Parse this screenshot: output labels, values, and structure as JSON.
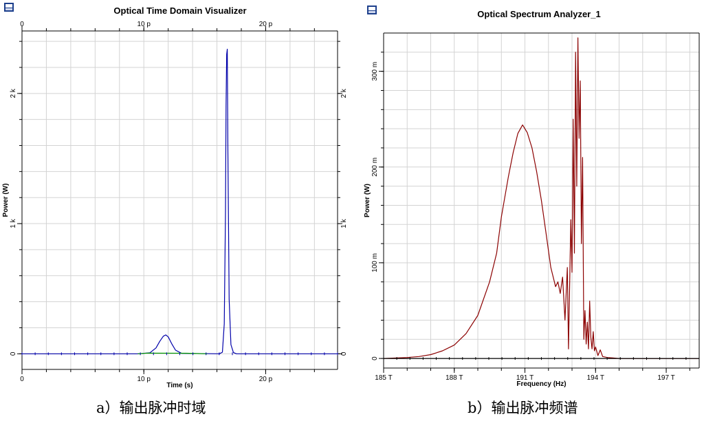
{
  "colors": {
    "time_main": "#0000aa",
    "time_secondary": "#009900",
    "spectrum_main": "#8b0000",
    "spectrum_noise": "#000000",
    "grid": "#d3d3d3",
    "icon": "#1c3f8c"
  },
  "icons": [
    "monitor-icon",
    "monitor-icon"
  ],
  "captions": {
    "left": "a）输出脉冲时域",
    "right": "b）输出脉冲频谱"
  },
  "chart_data": [
    {
      "type": "line",
      "title": "Optical Time Domain Visualizer",
      "xlabel": "Time (s)",
      "ylabel": "Power (W)",
      "x_ticks": [
        "0",
        "10 p",
        "20 p"
      ],
      "top_ticks": [
        "0",
        "10 p",
        "20 p"
      ],
      "y_ticks": [
        "0",
        "1 k",
        "2 k"
      ],
      "right_ticks": [
        "0",
        "1 k",
        "2 k"
      ],
      "xlim": [
        0,
        25.9
      ],
      "ylim": [
        -120,
        2480
      ],
      "grid": true,
      "series": [
        {
          "color": "time_main",
          "x": [
            0,
            9.5,
            10.5,
            11.0,
            11.3,
            11.6,
            11.8,
            12.0,
            12.3,
            12.6,
            13.1,
            16.2,
            16.45,
            16.6,
            16.7,
            16.75,
            16.8,
            16.85,
            16.9,
            17.0,
            17.15,
            17.35,
            17.6,
            25.9
          ],
          "y": [
            0,
            0,
            8,
            45,
            95,
            135,
            145,
            130,
            75,
            28,
            3,
            0,
            12,
            230,
            1100,
            1900,
            2300,
            2340,
            1550,
            420,
            70,
            10,
            0,
            0
          ]
        },
        {
          "color": "time_secondary",
          "x": [
            9.5,
            10.3,
            13.5,
            15.2
          ],
          "y": [
            0,
            5,
            4,
            0
          ]
        }
      ]
    },
    {
      "type": "line",
      "title": "Optical Spectrum Analyzer_1",
      "xlabel": "Frequency (Hz)",
      "ylabel": "Power (W)",
      "x_ticks": [
        "185 T",
        "188 T",
        "191 T",
        "194 T",
        "197 T"
      ],
      "y_ticks": [
        "0",
        "100 m",
        "200 m",
        "300 m"
      ],
      "xlim": [
        185,
        198.4
      ],
      "ylim": [
        -10,
        340
      ],
      "grid": true,
      "series": [
        {
          "color": "spectrum_main",
          "x": [
            185.0,
            186.0,
            186.5,
            187.0,
            187.5,
            188.0,
            188.5,
            189.0,
            189.5,
            189.8,
            190.0,
            190.3,
            190.5,
            190.7,
            190.9,
            191.1,
            191.3,
            191.5,
            191.7,
            191.9,
            192.1,
            192.3,
            192.4,
            192.5,
            192.6,
            192.7,
            192.8,
            192.85,
            192.95,
            193.0,
            193.05,
            193.1,
            193.15,
            193.2,
            193.25,
            193.3,
            193.35,
            193.4,
            193.45,
            193.5,
            193.55,
            193.6,
            193.65,
            193.7,
            193.75,
            193.8,
            193.85,
            193.9,
            193.95,
            194.0,
            194.1,
            194.2,
            194.3,
            194.5,
            195.0,
            198.4
          ],
          "y": [
            0,
            1,
            2,
            4,
            8,
            14,
            26,
            45,
            80,
            110,
            148,
            190,
            215,
            235,
            244,
            236,
            220,
            195,
            165,
            130,
            95,
            75,
            80,
            68,
            85,
            40,
            95,
            10,
            145,
            90,
            250,
            110,
            320,
            180,
            335,
            230,
            290,
            120,
            210,
            20,
            50,
            15,
            38,
            10,
            60,
            22,
            10,
            28,
            8,
            12,
            3,
            9,
            2,
            1,
            0,
            0
          ]
        },
        {
          "color": "spectrum_noise",
          "x": [
            185,
            198.4
          ],
          "y": [
            0,
            0
          ]
        }
      ]
    }
  ]
}
